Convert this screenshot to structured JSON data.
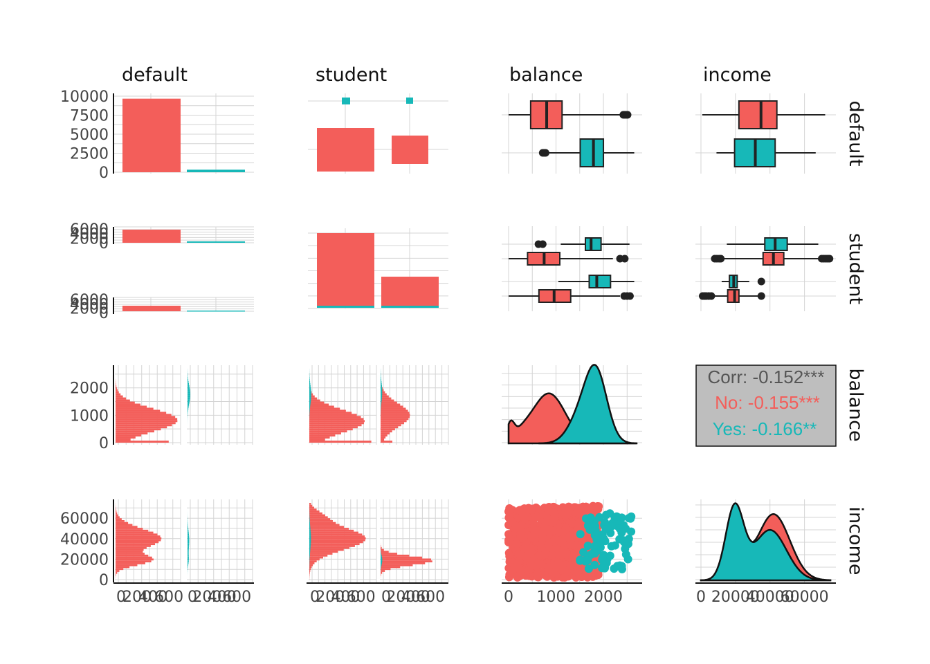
{
  "colors": {
    "No": "#F35E5A",
    "Yes": "#17B8B8",
    "grid": "#D4D4D4",
    "outline": "#222222",
    "corr_box": "#BEBEBE",
    "corr_text": "#555555"
  },
  "variables": [
    "default",
    "student",
    "balance",
    "income"
  ],
  "chart_data": {
    "type": "scatter-matrix",
    "color_by": "default",
    "groups": [
      "No",
      "Yes"
    ],
    "group_counts": {
      "No": 9667,
      "Yes": 333
    },
    "axes": {
      "default": {
        "ticks": [
          "0",
          "2500",
          "5000",
          "7500",
          "10000"
        ],
        "ylim": [
          0,
          10000
        ]
      },
      "student_counts": {
        "ticks": [
          "0",
          "2000",
          "4000",
          "6000"
        ]
      },
      "balance": {
        "ticks": [
          "0",
          "1000",
          "2000"
        ],
        "lim": [
          0,
          2700
        ]
      },
      "income": {
        "ticks": [
          "0",
          "20000",
          "40000",
          "60000"
        ],
        "lim": [
          0,
          75000
        ]
      },
      "count_x": {
        "ticks": [
          "0",
          "200",
          "400",
          "600"
        ]
      }
    },
    "default_bar": {
      "categories": [
        "No",
        "Yes"
      ],
      "values": [
        9667,
        333
      ]
    },
    "student_by_default": {
      "No": {
        "student_No": 6850,
        "student_Yes": 2817
      },
      "Yes": {
        "student_No": 206,
        "student_Yes": 127
      }
    },
    "balance_box": {
      "default_No": {
        "min": 0,
        "q1": 465,
        "median": 803,
        "q3": 1128,
        "max": 2400,
        "outliers": [
          2420,
          2450,
          2480,
          2510
        ]
      },
      "default_Yes": {
        "min": 650,
        "q1": 1511,
        "median": 1790,
        "q3": 2000,
        "max": 2650,
        "outliers": [
          720,
          750,
          780
        ]
      }
    },
    "income_box": {
      "default_No": {
        "min": 800,
        "q1": 22000,
        "median": 34800,
        "q3": 44000,
        "max": 72000
      },
      "default_Yes": {
        "min": 9000,
        "q1": 19500,
        "median": 31500,
        "q3": 43000,
        "max": 66500
      }
    },
    "correlation": {
      "total": "Corr: -0.152***",
      "No": "No: -0.155***",
      "Yes": "Yes: -0.166**"
    }
  }
}
